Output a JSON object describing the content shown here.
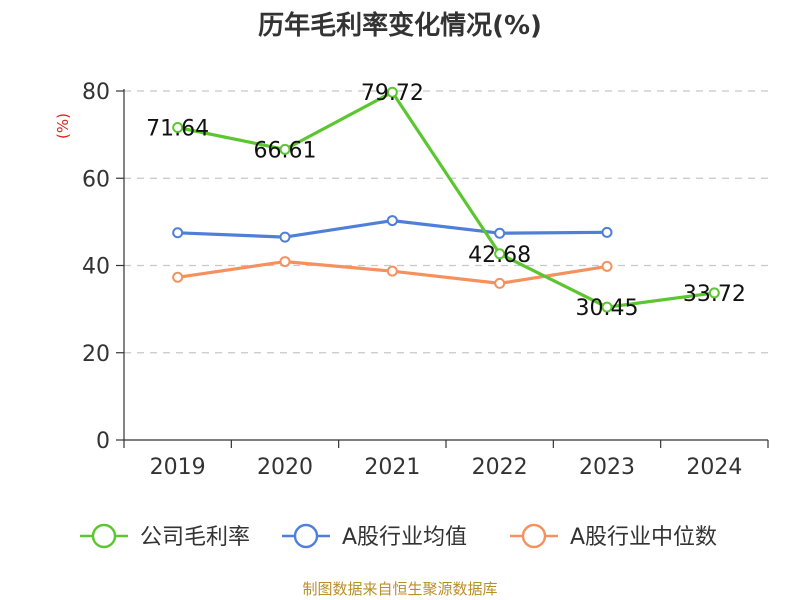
{
  "chart_data": {
    "type": "line",
    "title": "历年毛利率变化情况(%)",
    "ylabel": "(%)",
    "categories": [
      "2019",
      "2020",
      "2021",
      "2022",
      "2023",
      "2024"
    ],
    "ylim": [
      0,
      80
    ],
    "yticks": [
      "0",
      "20",
      "40",
      "60",
      "80"
    ],
    "grid": true,
    "legend_position": "bottom",
    "series": [
      {
        "name": "公司毛利率",
        "color": "#5cc630",
        "values": [
          71.64,
          66.61,
          79.72,
          42.68,
          30.45,
          33.72
        ],
        "labels": [
          "71.64",
          "66.61",
          "79.72",
          "42.68",
          "30.45",
          "33.72"
        ]
      },
      {
        "name": "A股行业均值",
        "color": "#4f7fd8",
        "values": [
          47.5,
          46.5,
          50.3,
          47.4,
          47.6,
          null
        ]
      },
      {
        "name": "A股行业中位数",
        "color": "#f5915e",
        "values": [
          37.3,
          40.9,
          38.7,
          35.9,
          39.8,
          null
        ]
      }
    ],
    "ylabel_color": "#d9261c"
  },
  "source": {
    "text": "制图数据来自恒生聚源数据库",
    "color": "#b8902a"
  }
}
